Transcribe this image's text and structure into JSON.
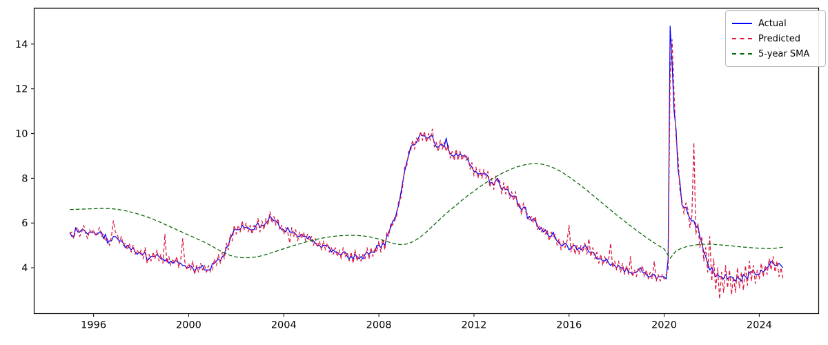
{
  "chart_data": {
    "type": "line",
    "title": "",
    "xlabel": "",
    "ylabel": "",
    "xlim": [
      1993.5,
      2026.5
    ],
    "ylim": [
      1.95,
      15.6
    ],
    "xticks": [
      1996,
      2000,
      2004,
      2008,
      2012,
      2016,
      2020,
      2024
    ],
    "yticks": [
      4,
      6,
      8,
      10,
      12,
      14
    ],
    "grid": false,
    "legend_position": "upper right",
    "axis_color": "#000000",
    "series": [
      {
        "name": "Actual",
        "color": "#0000ff",
        "style": "solid",
        "x_start": 1995.0,
        "x_step": 0.0833333,
        "values": [
          5.6,
          5.4,
          5.4,
          5.8,
          5.6,
          5.6,
          5.7,
          5.7,
          5.6,
          5.5,
          5.6,
          5.6,
          5.6,
          5.5,
          5.5,
          5.6,
          5.6,
          5.3,
          5.5,
          5.1,
          5.2,
          5.2,
          5.4,
          5.4,
          5.3,
          5.2,
          5.2,
          5.1,
          4.9,
          5.0,
          4.9,
          4.8,
          4.9,
          4.7,
          4.6,
          4.7,
          4.6,
          4.6,
          4.7,
          4.3,
          4.4,
          4.5,
          4.5,
          4.5,
          4.6,
          4.5,
          4.4,
          4.4,
          4.3,
          4.4,
          4.2,
          4.3,
          4.2,
          4.3,
          4.3,
          4.2,
          4.2,
          4.1,
          4.1,
          4.0,
          4.0,
          4.1,
          4.0,
          3.8,
          4.0,
          4.0,
          4.0,
          4.1,
          3.9,
          3.9,
          3.9,
          3.9,
          4.2,
          4.2,
          4.3,
          4.4,
          4.3,
          4.5,
          4.6,
          4.9,
          5.0,
          5.3,
          5.5,
          5.7,
          5.7,
          5.7,
          5.7,
          5.9,
          5.8,
          5.8,
          5.8,
          5.7,
          5.7,
          5.7,
          5.9,
          6.0,
          5.8,
          5.9,
          5.9,
          6.0,
          6.1,
          6.3,
          6.2,
          6.1,
          6.1,
          6.0,
          5.8,
          5.7,
          5.7,
          5.6,
          5.8,
          5.6,
          5.6,
          5.6,
          5.5,
          5.4,
          5.4,
          5.5,
          5.4,
          5.4,
          5.3,
          5.4,
          5.2,
          5.2,
          5.1,
          5.0,
          5.0,
          4.9,
          5.0,
          5.0,
          5.0,
          4.9,
          4.7,
          4.8,
          4.7,
          4.7,
          4.6,
          4.6,
          4.7,
          4.7,
          4.5,
          4.4,
          4.5,
          4.4,
          4.6,
          4.5,
          4.4,
          4.5,
          4.4,
          4.6,
          4.7,
          4.6,
          4.7,
          4.7,
          4.7,
          5.0,
          5.0,
          4.9,
          5.1,
          5.0,
          5.4,
          5.6,
          5.8,
          6.1,
          6.1,
          6.5,
          6.8,
          7.3,
          7.8,
          8.3,
          8.7,
          9.0,
          9.4,
          9.5,
          9.5,
          9.6,
          9.8,
          10.0,
          9.9,
          9.9,
          9.8,
          9.8,
          9.9,
          9.9,
          9.6,
          9.4,
          9.4,
          9.5,
          9.5,
          9.4,
          9.8,
          9.3,
          9.1,
          9.0,
          9.0,
          9.1,
          9.0,
          9.1,
          9.0,
          9.0,
          9.0,
          8.8,
          8.6,
          8.5,
          8.3,
          8.3,
          8.2,
          8.2,
          8.2,
          8.2,
          8.2,
          8.1,
          7.8,
          7.8,
          7.7,
          7.9,
          8.0,
          7.7,
          7.5,
          7.6,
          7.5,
          7.5,
          7.3,
          7.2,
          7.2,
          7.2,
          6.9,
          6.7,
          6.6,
          6.7,
          6.7,
          6.2,
          6.3,
          6.1,
          6.2,
          6.1,
          5.9,
          5.7,
          5.8,
          5.6,
          5.7,
          5.5,
          5.4,
          5.4,
          5.6,
          5.3,
          5.2,
          5.1,
          5.0,
          5.0,
          5.1,
          5.0,
          4.8,
          4.9,
          5.0,
          5.0,
          4.8,
          4.9,
          4.8,
          4.9,
          5.0,
          4.9,
          4.7,
          4.7,
          4.7,
          4.6,
          4.4,
          4.4,
          4.4,
          4.3,
          4.3,
          4.4,
          4.2,
          4.1,
          4.2,
          4.1,
          4.0,
          4.1,
          4.0,
          4.0,
          3.8,
          4.0,
          3.8,
          3.8,
          3.7,
          3.8,
          3.8,
          3.9,
          4.0,
          3.8,
          3.8,
          3.7,
          3.6,
          3.6,
          3.7,
          3.7,
          3.5,
          3.6,
          3.6,
          3.6,
          3.6,
          3.5,
          4.4,
          14.8,
          13.2,
          11.0,
          10.2,
          8.4,
          7.8,
          6.8,
          6.7,
          6.7,
          6.4,
          6.2,
          6.1,
          6.1,
          5.8,
          5.9,
          5.4,
          5.1,
          4.7,
          4.5,
          4.2,
          3.9,
          4.0,
          3.8,
          3.6,
          3.7,
          3.6,
          3.6,
          3.5,
          3.7,
          3.5,
          3.6,
          3.6,
          3.5,
          3.4,
          3.6,
          3.5,
          3.4,
          3.7,
          3.6,
          3.5,
          3.8,
          3.8,
          3.9,
          3.7,
          3.7,
          3.7,
          3.9,
          3.8,
          3.9,
          4.0,
          4.1,
          4.3,
          4.2,
          4.1,
          4.1,
          4.2,
          4.1,
          4.0
        ]
      },
      {
        "name": "Predicted",
        "color": "#dc143c",
        "style": "dashed",
        "x_start": 1995.0,
        "x_step": 0.0833333,
        "values": [
          5.5,
          5.6,
          5.3,
          5.7,
          5.8,
          5.4,
          5.6,
          5.9,
          5.5,
          5.3,
          5.7,
          5.5,
          5.7,
          5.4,
          5.6,
          5.8,
          5.4,
          5.5,
          5.2,
          5.3,
          5.0,
          5.4,
          6.1,
          5.6,
          5.5,
          5.1,
          5.4,
          5.0,
          5.1,
          4.8,
          5.1,
          4.7,
          5.0,
          4.6,
          4.8,
          4.6,
          4.8,
          4.4,
          4.9,
          4.2,
          4.6,
          4.3,
          4.7,
          4.4,
          4.8,
          4.3,
          4.6,
          4.2,
          5.5,
          4.2,
          4.5,
          4.1,
          4.4,
          4.2,
          4.5,
          4.0,
          4.4,
          5.3,
          4.3,
          3.9,
          4.2,
          3.9,
          4.3,
          3.7,
          4.1,
          3.8,
          4.2,
          3.9,
          4.1,
          3.8,
          4.1,
          3.8,
          3.9,
          4.4,
          4.1,
          4.6,
          4.2,
          4.7,
          4.4,
          5.1,
          4.8,
          5.5,
          5.2,
          5.9,
          5.5,
          5.9,
          5.6,
          6.1,
          5.7,
          6.0,
          5.6,
          5.9,
          5.5,
          5.9,
          5.7,
          6.2,
          5.6,
          6.1,
          5.7,
          6.2,
          5.9,
          6.5,
          6.0,
          6.3,
          5.9,
          6.2,
          5.7,
          5.9,
          5.5,
          5.8,
          5.6,
          5.1,
          5.8,
          5.4,
          5.7,
          5.2,
          5.6,
          5.3,
          5.6,
          5.2,
          5.5,
          5.2,
          5.4,
          5.0,
          5.3,
          4.9,
          5.2,
          4.8,
          5.2,
          4.8,
          5.1,
          4.7,
          4.9,
          4.6,
          4.9,
          4.5,
          4.8,
          4.4,
          4.9,
          4.5,
          4.7,
          4.3,
          4.7,
          4.2,
          4.8,
          4.3,
          4.6,
          4.3,
          4.6,
          4.4,
          4.9,
          4.4,
          4.9,
          4.5,
          4.9,
          4.7,
          5.2,
          4.7,
          5.3,
          4.8,
          5.6,
          5.4,
          6.0,
          5.9,
          6.3,
          6.3,
          7.0,
          7.1,
          7.6,
          8.5,
          8.5,
          9.2,
          9.2,
          9.7,
          9.3,
          9.8,
          9.6,
          10.1,
          9.7,
          10.1,
          9.6,
          10.0,
          9.7,
          10.2,
          9.4,
          9.6,
          9.2,
          9.7,
          9.3,
          9.6,
          9.2,
          9.5,
          8.9,
          9.2,
          8.8,
          9.3,
          8.8,
          9.2,
          8.8,
          9.1,
          8.8,
          9.0,
          8.4,
          8.7,
          8.1,
          8.5,
          8.0,
          8.4,
          8.0,
          8.4,
          8.0,
          8.3,
          7.6,
          8.0,
          7.5,
          8.1,
          7.8,
          7.9,
          7.3,
          7.8,
          7.3,
          7.7,
          7.1,
          7.4,
          7.0,
          7.4,
          6.7,
          6.9,
          6.4,
          6.9,
          6.5,
          6.4,
          6.1,
          6.3,
          6.0,
          6.3,
          5.7,
          5.9,
          5.6,
          5.8,
          5.5,
          5.7,
          5.2,
          5.6,
          5.4,
          5.5,
          5.0,
          5.3,
          4.8,
          5.2,
          4.9,
          5.2,
          5.9,
          4.7,
          5.1,
          4.6,
          5.0,
          4.6,
          5.0,
          4.7,
          5.1,
          4.6,
          5.3,
          4.5,
          4.9,
          4.4,
          4.7,
          4.2,
          4.6,
          4.1,
          4.5,
          4.2,
          4.4,
          5.1,
          4.0,
          4.3,
          3.9,
          4.3,
          3.8,
          4.2,
          3.7,
          4.1,
          3.7,
          4.5,
          3.6,
          3.9,
          3.6,
          4.0,
          3.8,
          4.1,
          3.6,
          3.9,
          3.5,
          3.8,
          3.5,
          4.3,
          3.4,
          3.7,
          3.4,
          3.7,
          3.5,
          3.7,
          3.9,
          12.5,
          14.2,
          11.8,
          9.8,
          9.0,
          7.4,
          7.0,
          6.4,
          6.9,
          6.6,
          5.8,
          6.3,
          9.6,
          5.5,
          6.0,
          4.9,
          5.4,
          4.3,
          4.9,
          3.8,
          5.4,
          3.4,
          4.4,
          3.0,
          4.0,
          2.6,
          3.8,
          2.9,
          4.1,
          3.1,
          3.9,
          2.8,
          3.6,
          2.9,
          4.0,
          3.1,
          3.8,
          3.0,
          4.1,
          3.2,
          4.3,
          3.4,
          4.1,
          3.3,
          3.9,
          3.5,
          4.2,
          3.6,
          4.1,
          3.7,
          4.4,
          3.9,
          4.5,
          3.8,
          4.3,
          3.6,
          4.0,
          3.5
        ]
      },
      {
        "name": "5-year SMA",
        "color": "#006400",
        "style": "dashed",
        "x_start": 1995.0,
        "x_step": 0.25,
        "values": [
          6.6,
          6.61,
          6.62,
          6.63,
          6.64,
          6.65,
          6.65,
          6.64,
          6.61,
          6.57,
          6.51,
          6.44,
          6.36,
          6.27,
          6.17,
          6.06,
          5.94,
          5.82,
          5.7,
          5.58,
          5.46,
          5.34,
          5.22,
          5.1,
          4.95,
          4.8,
          4.66,
          4.55,
          4.48,
          4.45,
          4.45,
          4.47,
          4.52,
          4.59,
          4.67,
          4.76,
          4.85,
          4.94,
          5.02,
          5.1,
          5.17,
          5.24,
          5.3,
          5.35,
          5.39,
          5.42,
          5.44,
          5.45,
          5.45,
          5.43,
          5.4,
          5.35,
          5.28,
          5.2,
          5.12,
          5.05,
          5.03,
          5.08,
          5.2,
          5.38,
          5.6,
          5.85,
          6.1,
          6.35,
          6.58,
          6.8,
          7.02,
          7.23,
          7.43,
          7.62,
          7.8,
          7.97,
          8.12,
          8.26,
          8.38,
          8.49,
          8.57,
          8.63,
          8.66,
          8.65,
          8.6,
          8.51,
          8.39,
          8.24,
          8.06,
          7.87,
          7.67,
          7.46,
          7.24,
          7.02,
          6.8,
          6.58,
          6.36,
          6.15,
          5.94,
          5.74,
          5.54,
          5.35,
          5.17,
          5.0,
          4.84,
          4.42,
          4.75,
          4.88,
          4.96,
          5.01,
          5.04,
          5.05,
          5.05,
          5.03,
          5.01,
          4.99,
          4.96,
          4.93,
          4.91,
          4.89,
          4.87,
          4.86,
          4.86,
          4.88,
          4.92
        ]
      }
    ]
  }
}
